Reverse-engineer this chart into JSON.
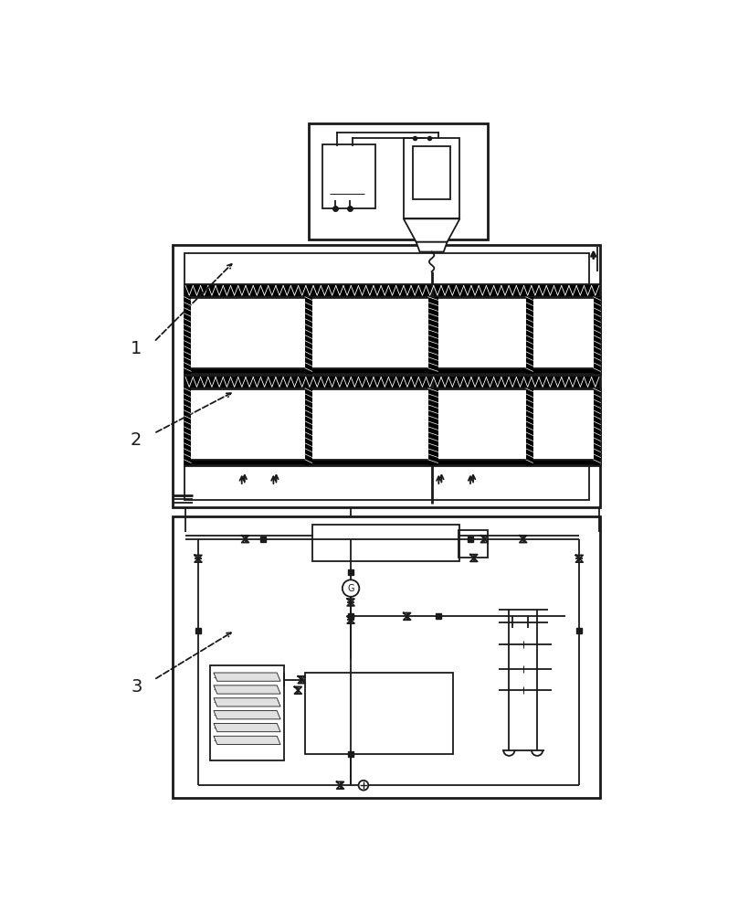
{
  "bg_color": "#ffffff",
  "lc": "#1a1a1a",
  "fig_width": 8.08,
  "fig_height": 10.0,
  "dpi": 100
}
